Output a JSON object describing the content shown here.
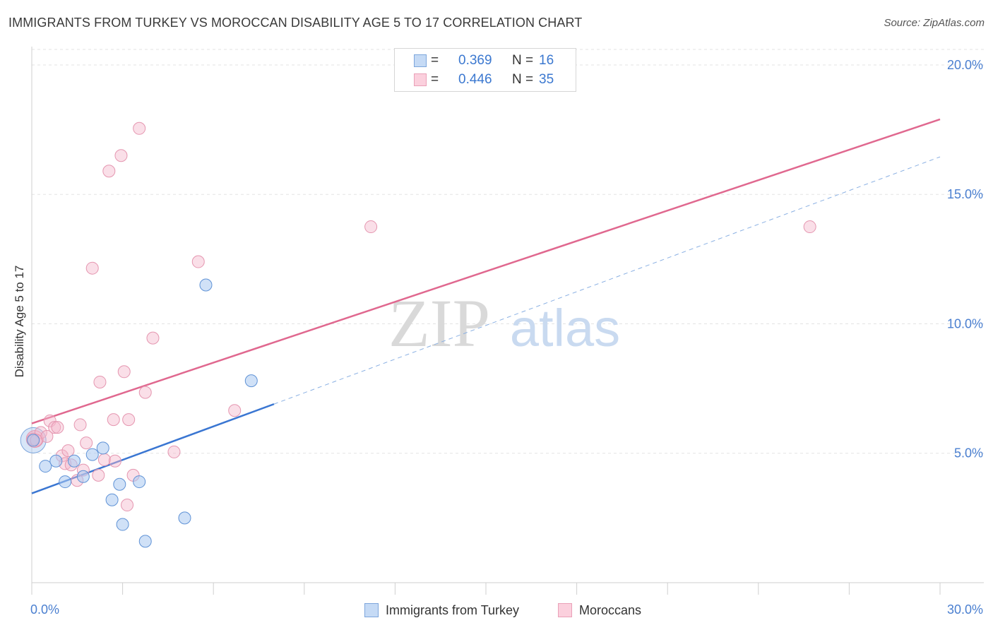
{
  "title": "IMMIGRANTS FROM TURKEY VS MOROCCAN DISABILITY AGE 5 TO 17 CORRELATION CHART",
  "source": "Source: ZipAtlas.com",
  "watermark": {
    "zip": "ZIP",
    "atlas": "atlas"
  },
  "legend_top": {
    "rows": [
      {
        "r_label": "R = ",
        "r_value": "0.369",
        "n_label": "N = ",
        "n_value": "16",
        "color": "#a9c8f0"
      },
      {
        "r_label": "R = ",
        "r_value": "0.446",
        "n_label": "N = ",
        "n_value": "35",
        "color": "#f5b8cb"
      }
    ]
  },
  "legend_bottom": {
    "items": [
      {
        "label": "Immigrants from Turkey",
        "color": "#a9c8f0"
      },
      {
        "label": "Moroccans",
        "color": "#f5b8cb"
      }
    ]
  },
  "chart_data": {
    "type": "scatter",
    "title": "IMMIGRANTS FROM TURKEY VS MOROCCAN DISABILITY AGE 5 TO 17 CORRELATION CHART",
    "xlabel": "",
    "ylabel": "Disability Age 5 to 17",
    "xlim": [
      0,
      30
    ],
    "ylim": [
      0,
      20.6
    ],
    "x_tick_labels": [
      "0.0%",
      "30.0%"
    ],
    "y_ticks": [
      5,
      10,
      15,
      20
    ],
    "y_tick_labels": [
      "5.0%",
      "10.0%",
      "15.0%",
      "20.0%"
    ],
    "grid": true,
    "legend_position": "top-center",
    "series": [
      {
        "name": "Immigrants from Turkey",
        "color": "#3a76d2",
        "fill": "#a9c8f0",
        "points": [
          [
            0.05,
            5.5
          ],
          [
            0.45,
            4.5
          ],
          [
            0.8,
            4.7
          ],
          [
            1.1,
            3.9
          ],
          [
            1.4,
            4.7
          ],
          [
            1.7,
            4.1
          ],
          [
            2.0,
            4.95
          ],
          [
            2.35,
            5.2
          ],
          [
            2.65,
            3.2
          ],
          [
            2.9,
            3.8
          ],
          [
            3.0,
            2.25
          ],
          [
            3.55,
            3.9
          ],
          [
            3.75,
            1.6
          ],
          [
            5.05,
            2.5
          ],
          [
            5.75,
            11.5
          ],
          [
            7.25,
            7.8
          ]
        ],
        "trend": {
          "x": [
            0,
            8
          ],
          "y": [
            3.45,
            6.9
          ],
          "dashed_extension_to_x": 30,
          "dashed_extension_y": 16.45
        }
      },
      {
        "name": "Moroccans",
        "color": "#e0688f",
        "fill": "#f5b8cb",
        "points": [
          [
            0.05,
            5.55
          ],
          [
            0.3,
            5.8
          ],
          [
            0.5,
            5.65
          ],
          [
            0.6,
            6.25
          ],
          [
            0.75,
            6.0
          ],
          [
            0.85,
            6.0
          ],
          [
            1.0,
            4.9
          ],
          [
            1.1,
            4.6
          ],
          [
            1.2,
            5.1
          ],
          [
            1.3,
            4.55
          ],
          [
            1.5,
            3.95
          ],
          [
            1.6,
            6.1
          ],
          [
            1.7,
            4.35
          ],
          [
            1.8,
            5.4
          ],
          [
            2.0,
            12.15
          ],
          [
            2.2,
            4.15
          ],
          [
            2.25,
            7.75
          ],
          [
            2.4,
            4.75
          ],
          [
            2.55,
            15.9
          ],
          [
            2.7,
            6.3
          ],
          [
            2.75,
            4.7
          ],
          [
            2.95,
            16.5
          ],
          [
            3.05,
            8.15
          ],
          [
            3.15,
            3.0
          ],
          [
            3.2,
            6.3
          ],
          [
            3.35,
            4.15
          ],
          [
            3.55,
            17.55
          ],
          [
            3.75,
            7.35
          ],
          [
            4.0,
            9.45
          ],
          [
            4.7,
            5.05
          ],
          [
            5.5,
            12.4
          ],
          [
            6.7,
            6.65
          ],
          [
            11.2,
            13.75
          ],
          [
            25.7,
            13.75
          ],
          [
            0.15,
            5.5
          ]
        ],
        "trend": {
          "x": [
            0,
            30
          ],
          "y": [
            6.15,
            17.9
          ]
        }
      }
    ]
  }
}
